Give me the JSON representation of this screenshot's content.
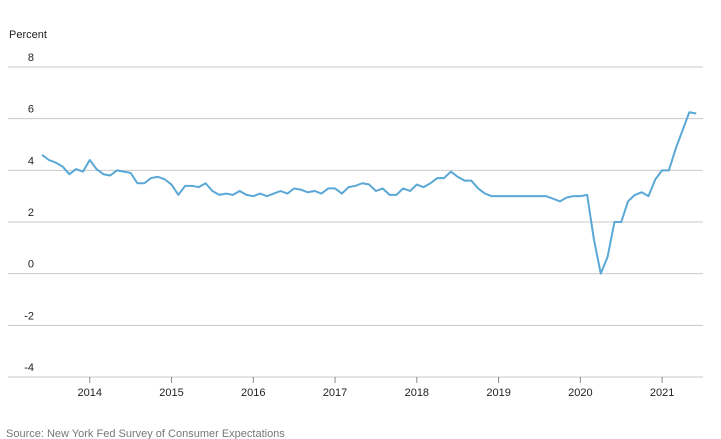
{
  "chart_data": {
    "type": "line",
    "y_label": "Percent",
    "source": "Source: New York Fed Survey of Consumer Expectations",
    "x": [
      2013.417,
      2013.5,
      2013.583,
      2013.667,
      2013.75,
      2013.833,
      2013.917,
      2014.0,
      2014.083,
      2014.167,
      2014.25,
      2014.333,
      2014.417,
      2014.5,
      2014.583,
      2014.667,
      2014.75,
      2014.833,
      2014.917,
      2015.0,
      2015.083,
      2015.167,
      2015.25,
      2015.333,
      2015.417,
      2015.5,
      2015.583,
      2015.667,
      2015.75,
      2015.833,
      2015.917,
      2016.0,
      2016.083,
      2016.167,
      2016.25,
      2016.333,
      2016.417,
      2016.5,
      2016.583,
      2016.667,
      2016.75,
      2016.833,
      2016.917,
      2017.0,
      2017.083,
      2017.167,
      2017.25,
      2017.333,
      2017.417,
      2017.5,
      2017.583,
      2017.667,
      2017.75,
      2017.833,
      2017.917,
      2018.0,
      2018.083,
      2018.167,
      2018.25,
      2018.333,
      2018.417,
      2018.5,
      2018.583,
      2018.667,
      2018.75,
      2018.833,
      2018.917,
      2019.0,
      2019.083,
      2019.167,
      2019.25,
      2019.333,
      2019.417,
      2019.5,
      2019.583,
      2019.667,
      2019.75,
      2019.833,
      2019.917,
      2020.0,
      2020.083,
      2020.167,
      2020.25,
      2020.333,
      2020.417,
      2020.5,
      2020.583,
      2020.667,
      2020.75,
      2020.833,
      2020.917,
      2021.0,
      2021.083,
      2021.167,
      2021.25,
      2021.333,
      2021.417
    ],
    "series": [
      {
        "color": "#5aa8d6",
        "values": [
          4.6,
          4.4,
          4.3,
          4.15,
          3.85,
          4.05,
          3.95,
          4.4,
          4.05,
          3.85,
          3.8,
          4.0,
          3.95,
          3.9,
          3.5,
          3.5,
          3.7,
          3.75,
          3.65,
          3.45,
          3.05,
          3.4,
          3.4,
          3.35,
          3.5,
          3.2,
          3.05,
          3.1,
          3.05,
          3.2,
          3.05,
          3.0,
          3.1,
          3.0,
          3.1,
          3.2,
          3.1,
          3.3,
          3.25,
          3.15,
          3.2,
          3.1,
          3.3,
          3.3,
          3.1,
          3.35,
          3.4,
          3.5,
          3.45,
          3.2,
          3.3,
          3.05,
          3.05,
          3.3,
          3.2,
          3.45,
          3.35,
          3.5,
          3.7,
          3.7,
          3.95,
          3.75,
          3.6,
          3.6,
          3.3,
          3.1,
          3.0,
          3.0,
          3.0,
          3.0,
          3.0,
          3.0,
          3.0,
          3.0,
          3.0,
          2.9,
          2.8,
          2.95,
          3.0,
          3.0,
          3.05,
          1.3,
          0.0,
          0.65,
          2.0,
          2.0,
          2.8,
          3.05,
          3.15,
          3.0,
          3.65,
          4.0,
          4.0,
          4.85,
          5.55,
          6.25,
          6.2
        ]
      }
    ],
    "xlim": [
      2013.0,
      2021.5
    ],
    "xticks": [
      2014,
      2015,
      2016,
      2017,
      2018,
      2019,
      2020,
      2021
    ],
    "ylim": [
      -4,
      8
    ],
    "yticks": [
      -4,
      -2,
      0,
      2,
      4,
      6,
      8
    ],
    "grid": true
  }
}
